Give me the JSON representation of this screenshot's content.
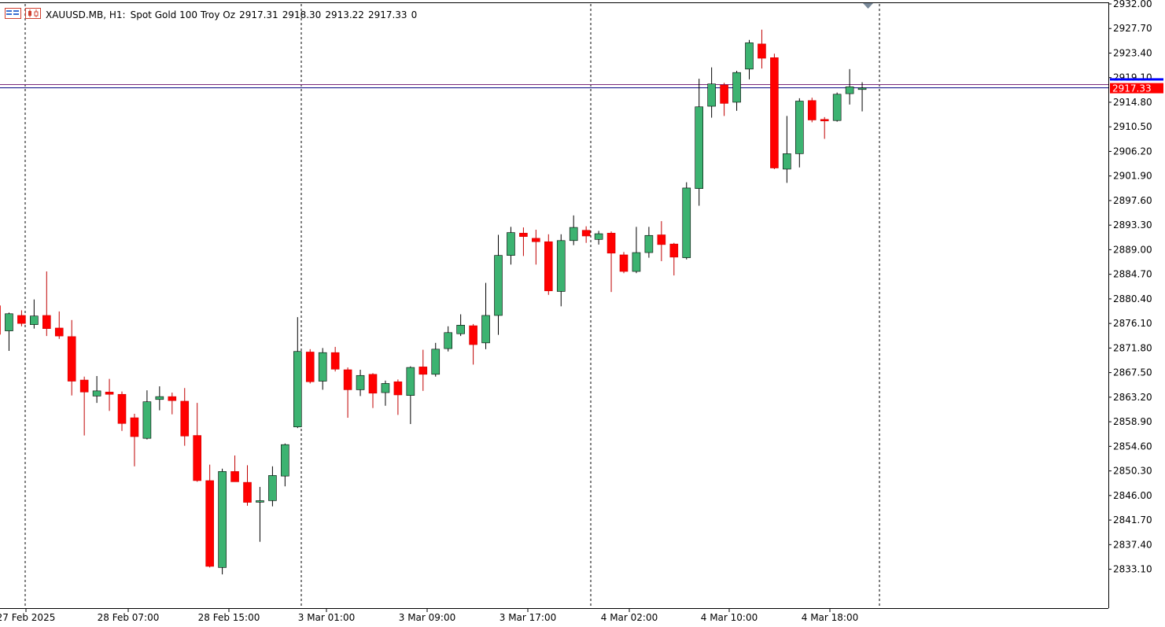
{
  "header": {
    "symbol": "XAUUSD.MB, H1:",
    "description": "Spot Gold 100 Troy Oz",
    "open": "2917.31",
    "high": "2918.30",
    "low": "2913.22",
    "close": "2917.33",
    "volume": "0"
  },
  "price_labels": {
    "bid": "2917.33"
  },
  "colors": {
    "bull": "#3cb371",
    "bear": "#ff0000",
    "bid_line": "#000080",
    "ask_line": "#7a2a7a",
    "price_tag": "#ff0000"
  },
  "chart_data": {
    "type": "candlestick",
    "timeframe": "H1",
    "ylim": [
      2830.7,
      2932.0
    ],
    "y_ticks": [
      "2932.00",
      "2927.70",
      "2923.40",
      "2919.10",
      "2914.80",
      "2910.50",
      "2906.20",
      "2901.90",
      "2897.60",
      "2893.30",
      "2889.00",
      "2884.70",
      "2880.40",
      "2876.10",
      "2871.80",
      "2867.50",
      "2863.20",
      "2858.90",
      "2854.60",
      "2850.30",
      "2846.00",
      "2841.70",
      "2837.40",
      "2833.10"
    ],
    "x_ticks": [
      "27 Feb 2025",
      "28 Feb 07:00",
      "28 Feb 15:00",
      "3 Mar 01:00",
      "3 Mar 09:00",
      "3 Mar 17:00",
      "4 Mar 02:00",
      "4 Mar 10:00",
      "4 Mar 18:00"
    ],
    "day_separators": [
      "28 Feb",
      "3 Mar",
      "4 Mar",
      "5 Mar"
    ],
    "bid": 2917.33,
    "ask": 2917.9,
    "candles": [
      {
        "o": 2879.2,
        "h": 2879.4,
        "l": 2874.0,
        "c": 2874.2
      },
      {
        "o": 2874.8,
        "h": 2878.0,
        "l": 2871.3,
        "c": 2877.8
      },
      {
        "o": 2877.5,
        "h": 2878.4,
        "l": 2875.6,
        "c": 2876.1
      },
      {
        "o": 2875.9,
        "h": 2880.3,
        "l": 2875.2,
        "c": 2877.4
      },
      {
        "o": 2877.5,
        "h": 2885.2,
        "l": 2873.9,
        "c": 2875.2
      },
      {
        "o": 2875.3,
        "h": 2878.2,
        "l": 2873.4,
        "c": 2873.9
      },
      {
        "o": 2873.8,
        "h": 2876.7,
        "l": 2863.5,
        "c": 2866.0
      },
      {
        "o": 2866.2,
        "h": 2866.8,
        "l": 2856.5,
        "c": 2864.1
      },
      {
        "o": 2863.4,
        "h": 2866.9,
        "l": 2862.2,
        "c": 2864.3
      },
      {
        "o": 2864.1,
        "h": 2866.4,
        "l": 2860.8,
        "c": 2863.7
      },
      {
        "o": 2863.7,
        "h": 2864.2,
        "l": 2857.3,
        "c": 2858.6
      },
      {
        "o": 2859.6,
        "h": 2860.3,
        "l": 2851.1,
        "c": 2856.3
      },
      {
        "o": 2856.0,
        "h": 2864.4,
        "l": 2855.8,
        "c": 2862.4
      },
      {
        "o": 2862.8,
        "h": 2865.1,
        "l": 2860.9,
        "c": 2863.3
      },
      {
        "o": 2863.3,
        "h": 2864.0,
        "l": 2860.2,
        "c": 2862.6
      },
      {
        "o": 2862.5,
        "h": 2864.8,
        "l": 2854.7,
        "c": 2856.4
      },
      {
        "o": 2856.5,
        "h": 2862.2,
        "l": 2848.4,
        "c": 2848.6
      },
      {
        "o": 2848.6,
        "h": 2851.4,
        "l": 2833.4,
        "c": 2833.6
      },
      {
        "o": 2833.4,
        "h": 2850.7,
        "l": 2832.2,
        "c": 2850.2
      },
      {
        "o": 2850.2,
        "h": 2853.0,
        "l": 2848.6,
        "c": 2848.4
      },
      {
        "o": 2848.3,
        "h": 2851.3,
        "l": 2844.2,
        "c": 2844.8
      },
      {
        "o": 2845.0,
        "h": 2847.5,
        "l": 2837.9,
        "c": 2845.1
      },
      {
        "o": 2845.1,
        "h": 2851.1,
        "l": 2844.1,
        "c": 2849.5
      },
      {
        "o": 2849.4,
        "h": 2855.1,
        "l": 2847.6,
        "c": 2854.9
      },
      {
        "o": 2858.0,
        "h": 2877.2,
        "l": 2857.8,
        "c": 2871.2
      },
      {
        "o": 2871.1,
        "h": 2871.6,
        "l": 2865.6,
        "c": 2865.9
      },
      {
        "o": 2866.0,
        "h": 2871.8,
        "l": 2864.5,
        "c": 2871.0
      },
      {
        "o": 2871.0,
        "h": 2872.0,
        "l": 2867.7,
        "c": 2868.1
      },
      {
        "o": 2868.0,
        "h": 2868.4,
        "l": 2859.6,
        "c": 2864.5
      },
      {
        "o": 2864.5,
        "h": 2868.0,
        "l": 2863.4,
        "c": 2867.0
      },
      {
        "o": 2867.2,
        "h": 2867.4,
        "l": 2861.3,
        "c": 2863.9
      },
      {
        "o": 2864.0,
        "h": 2866.1,
        "l": 2861.7,
        "c": 2865.6
      },
      {
        "o": 2865.9,
        "h": 2866.3,
        "l": 2860.1,
        "c": 2863.6
      },
      {
        "o": 2863.5,
        "h": 2868.6,
        "l": 2858.5,
        "c": 2868.4
      },
      {
        "o": 2868.5,
        "h": 2871.5,
        "l": 2864.3,
        "c": 2867.2
      },
      {
        "o": 2867.2,
        "h": 2872.7,
        "l": 2866.8,
        "c": 2871.6
      },
      {
        "o": 2871.7,
        "h": 2875.6,
        "l": 2871.2,
        "c": 2874.5
      },
      {
        "o": 2874.3,
        "h": 2877.7,
        "l": 2873.9,
        "c": 2875.8
      },
      {
        "o": 2875.7,
        "h": 2876.0,
        "l": 2868.9,
        "c": 2872.4
      },
      {
        "o": 2872.7,
        "h": 2883.2,
        "l": 2871.6,
        "c": 2877.5
      },
      {
        "o": 2877.5,
        "h": 2891.6,
        "l": 2874.1,
        "c": 2888.0
      },
      {
        "o": 2888.0,
        "h": 2893.0,
        "l": 2886.4,
        "c": 2892.0
      },
      {
        "o": 2891.9,
        "h": 2892.9,
        "l": 2887.9,
        "c": 2891.3
      },
      {
        "o": 2891.0,
        "h": 2892.5,
        "l": 2886.4,
        "c": 2890.4
      },
      {
        "o": 2890.4,
        "h": 2891.7,
        "l": 2881.1,
        "c": 2881.8
      },
      {
        "o": 2881.7,
        "h": 2891.7,
        "l": 2879.1,
        "c": 2890.6
      },
      {
        "o": 2890.6,
        "h": 2895.0,
        "l": 2889.8,
        "c": 2892.9
      },
      {
        "o": 2892.4,
        "h": 2893.1,
        "l": 2890.2,
        "c": 2891.4
      },
      {
        "o": 2890.8,
        "h": 2892.3,
        "l": 2889.9,
        "c": 2891.8
      },
      {
        "o": 2891.9,
        "h": 2892.2,
        "l": 2881.6,
        "c": 2888.4
      },
      {
        "o": 2888.1,
        "h": 2888.6,
        "l": 2884.9,
        "c": 2885.2
      },
      {
        "o": 2885.2,
        "h": 2893.0,
        "l": 2884.9,
        "c": 2888.5
      },
      {
        "o": 2888.5,
        "h": 2893.0,
        "l": 2887.6,
        "c": 2891.5
      },
      {
        "o": 2891.6,
        "h": 2894.0,
        "l": 2887.0,
        "c": 2889.9
      },
      {
        "o": 2890.0,
        "h": 2890.2,
        "l": 2884.5,
        "c": 2887.7
      },
      {
        "o": 2887.6,
        "h": 2900.8,
        "l": 2887.3,
        "c": 2899.8
      },
      {
        "o": 2899.7,
        "h": 2918.9,
        "l": 2896.7,
        "c": 2914.0
      },
      {
        "o": 2914.1,
        "h": 2920.9,
        "l": 2912.1,
        "c": 2918.0
      },
      {
        "o": 2917.8,
        "h": 2918.2,
        "l": 2912.4,
        "c": 2914.6
      },
      {
        "o": 2914.8,
        "h": 2920.3,
        "l": 2913.3,
        "c": 2920.0
      },
      {
        "o": 2920.6,
        "h": 2925.7,
        "l": 2918.8,
        "c": 2925.2
      },
      {
        "o": 2925.0,
        "h": 2927.5,
        "l": 2920.7,
        "c": 2922.5
      },
      {
        "o": 2922.6,
        "h": 2923.3,
        "l": 2903.1,
        "c": 2903.3
      },
      {
        "o": 2903.1,
        "h": 2912.4,
        "l": 2900.7,
        "c": 2905.8
      },
      {
        "o": 2905.8,
        "h": 2915.5,
        "l": 2903.4,
        "c": 2915.0
      },
      {
        "o": 2915.1,
        "h": 2915.6,
        "l": 2911.3,
        "c": 2911.7
      },
      {
        "o": 2911.8,
        "h": 2912.2,
        "l": 2908.4,
        "c": 2911.6
      },
      {
        "o": 2911.6,
        "h": 2916.5,
        "l": 2911.4,
        "c": 2916.2
      },
      {
        "o": 2916.3,
        "h": 2920.6,
        "l": 2914.4,
        "c": 2917.5
      },
      {
        "o": 2917.3,
        "h": 2918.3,
        "l": 2913.2,
        "c": 2917.3
      }
    ]
  }
}
